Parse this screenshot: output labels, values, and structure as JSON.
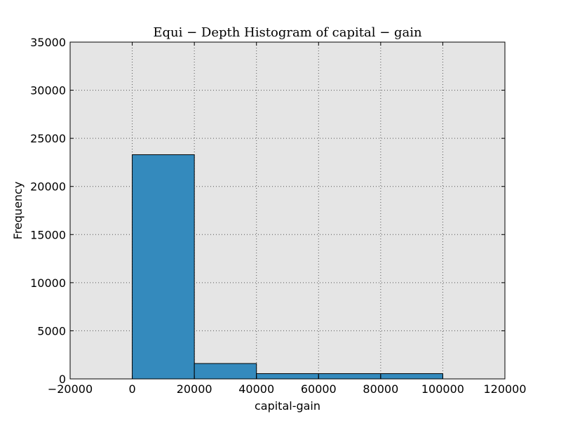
{
  "chart_data": {
    "type": "bar",
    "title": "Equi − Depth Histogram of capital − gain",
    "xlabel": "capital-gain",
    "ylabel": "Frequency",
    "xlim": [
      -20000,
      120000
    ],
    "ylim": [
      0,
      35000
    ],
    "xticks": [
      -20000,
      0,
      20000,
      40000,
      60000,
      80000,
      100000,
      120000
    ],
    "yticks": [
      0,
      5000,
      10000,
      15000,
      20000,
      25000,
      30000,
      35000
    ],
    "xtick_labels": [
      "−20000",
      "0",
      "20000",
      "40000",
      "60000",
      "80000",
      "100000",
      "120000"
    ],
    "ytick_labels": [
      "0",
      "5000",
      "10000",
      "15000",
      "20000",
      "25000",
      "30000",
      "35000"
    ],
    "bins": [
      {
        "start": 0,
        "end": 20000,
        "value": 23300
      },
      {
        "start": 20000,
        "end": 40000,
        "value": 1600
      },
      {
        "start": 40000,
        "end": 60000,
        "value": 550
      },
      {
        "start": 60000,
        "end": 80000,
        "value": 550
      },
      {
        "start": 80000,
        "end": 100000,
        "value": 550
      }
    ],
    "grid": true,
    "colors": {
      "bar": "#348abd",
      "plot_background": "#e5e5e5",
      "grid": "#555555"
    }
  }
}
